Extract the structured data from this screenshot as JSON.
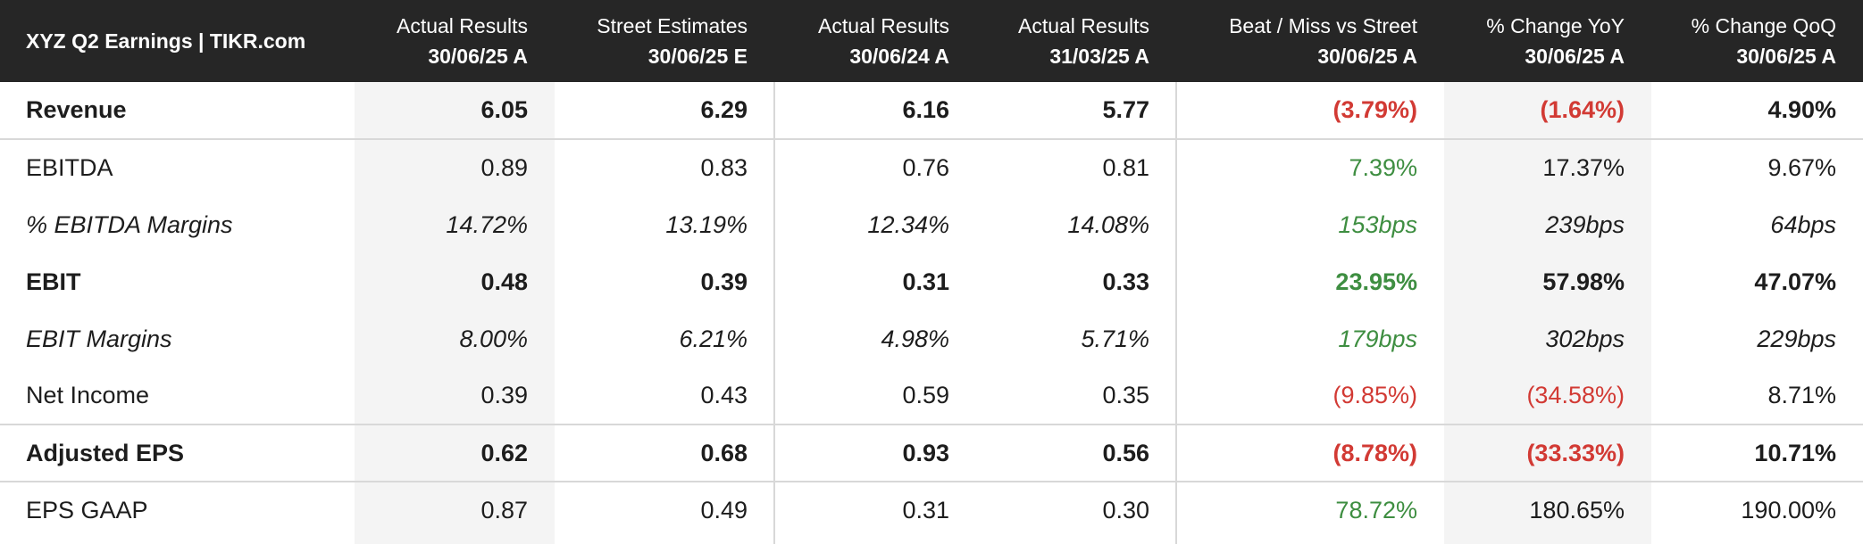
{
  "colors": {
    "header_bg": "#262626",
    "positive": "#3e8e41",
    "negative": "#d23a34",
    "band": "#f4f4f4"
  },
  "chart_data": {
    "type": "table",
    "title": "XYZ Q2 Earnings | TIKR.com",
    "columns": [
      {
        "line1": "Actual Results",
        "line2": "30/06/25 A"
      },
      {
        "line1": "Street Estimates",
        "line2": "30/06/25 E"
      },
      {
        "line1": "Actual Results",
        "line2": "30/06/24 A"
      },
      {
        "line1": "Actual Results",
        "line2": "31/03/25 A"
      },
      {
        "line1": "Beat / Miss vs Street",
        "line2": "30/06/25 A"
      },
      {
        "line1": "% Change YoY",
        "line2": "30/06/25 A"
      },
      {
        "line1": "% Change QoQ",
        "line2": "30/06/25 A"
      }
    ],
    "rows": [
      {
        "label": "Revenue",
        "style": "bold",
        "values": [
          "6.05",
          "6.29",
          "6.16",
          "5.77",
          "(3.79%)",
          "(1.64%)",
          "4.90%"
        ],
        "tones": [
          "",
          "",
          "",
          "",
          "neg",
          "neg",
          ""
        ]
      },
      {
        "label": "EBITDA",
        "style": "normal",
        "separator": true,
        "values": [
          "0.89",
          "0.83",
          "0.76",
          "0.81",
          "7.39%",
          "17.37%",
          "9.67%"
        ],
        "tones": [
          "",
          "",
          "",
          "",
          "pos",
          "",
          ""
        ]
      },
      {
        "label": "% EBITDA Margins",
        "style": "italic",
        "values": [
          "14.72%",
          "13.19%",
          "12.34%",
          "14.08%",
          "153bps",
          "239bps",
          "64bps"
        ],
        "tones": [
          "",
          "",
          "",
          "",
          "pos",
          "",
          ""
        ]
      },
      {
        "label": "EBIT",
        "style": "bold",
        "values": [
          "0.48",
          "0.39",
          "0.31",
          "0.33",
          "23.95%",
          "57.98%",
          "47.07%"
        ],
        "tones": [
          "",
          "",
          "",
          "",
          "pos",
          "",
          ""
        ]
      },
      {
        "label": "EBIT Margins",
        "style": "italic",
        "values": [
          "8.00%",
          "6.21%",
          "4.98%",
          "5.71%",
          "179bps",
          "302bps",
          "229bps"
        ],
        "tones": [
          "",
          "",
          "",
          "",
          "pos",
          "",
          ""
        ]
      },
      {
        "label": "Net Income",
        "style": "normal",
        "values": [
          "0.39",
          "0.43",
          "0.59",
          "0.35",
          "(9.85%)",
          "(34.58%)",
          "8.71%"
        ],
        "tones": [
          "",
          "",
          "",
          "",
          "neg",
          "neg",
          ""
        ]
      },
      {
        "label": "Adjusted EPS",
        "style": "bold",
        "separator": true,
        "values": [
          "0.62",
          "0.68",
          "0.93",
          "0.56",
          "(8.78%)",
          "(33.33%)",
          "10.71%"
        ],
        "tones": [
          "",
          "",
          "",
          "",
          "neg",
          "neg",
          ""
        ]
      },
      {
        "label": "EPS GAAP",
        "style": "normal",
        "separator": true,
        "values": [
          "0.87",
          "0.49",
          "0.31",
          "0.30",
          "78.72%",
          "180.65%",
          "190.00%"
        ],
        "tones": [
          "",
          "",
          "",
          "",
          "pos",
          "",
          ""
        ]
      }
    ]
  }
}
